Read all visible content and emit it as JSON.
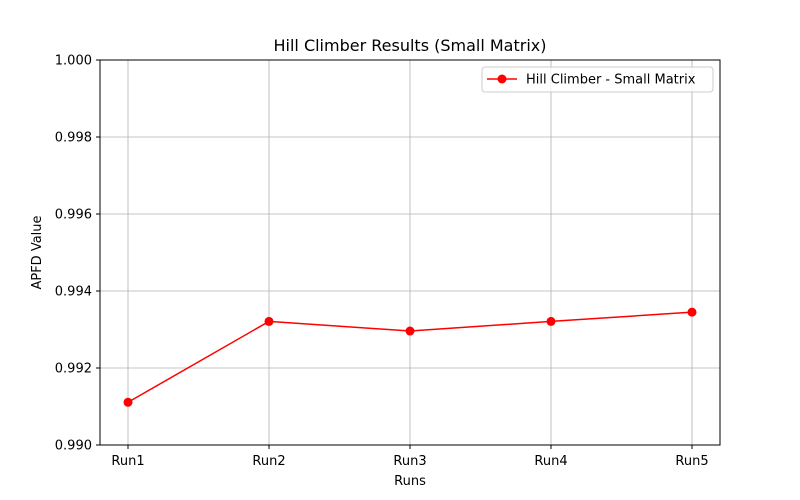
{
  "chart_data": {
    "type": "line",
    "title": "Hill Climber Results (Small Matrix)",
    "xlabel": "Runs",
    "ylabel": "APFD Value",
    "categories": [
      "Run1",
      "Run2",
      "Run3",
      "Run4",
      "Run5"
    ],
    "ylim": [
      0.99,
      1.0
    ],
    "yticks": [
      "0.990",
      "0.992",
      "0.994",
      "0.996",
      "0.998",
      "1.000"
    ],
    "grid": true,
    "legend_position": "top-right",
    "series": [
      {
        "name": "Hill Climber - Small Matrix",
        "color": "#ff0000",
        "marker": "circle",
        "values": [
          0.99111,
          0.99321,
          0.99296,
          0.99321,
          0.99345
        ]
      }
    ]
  }
}
